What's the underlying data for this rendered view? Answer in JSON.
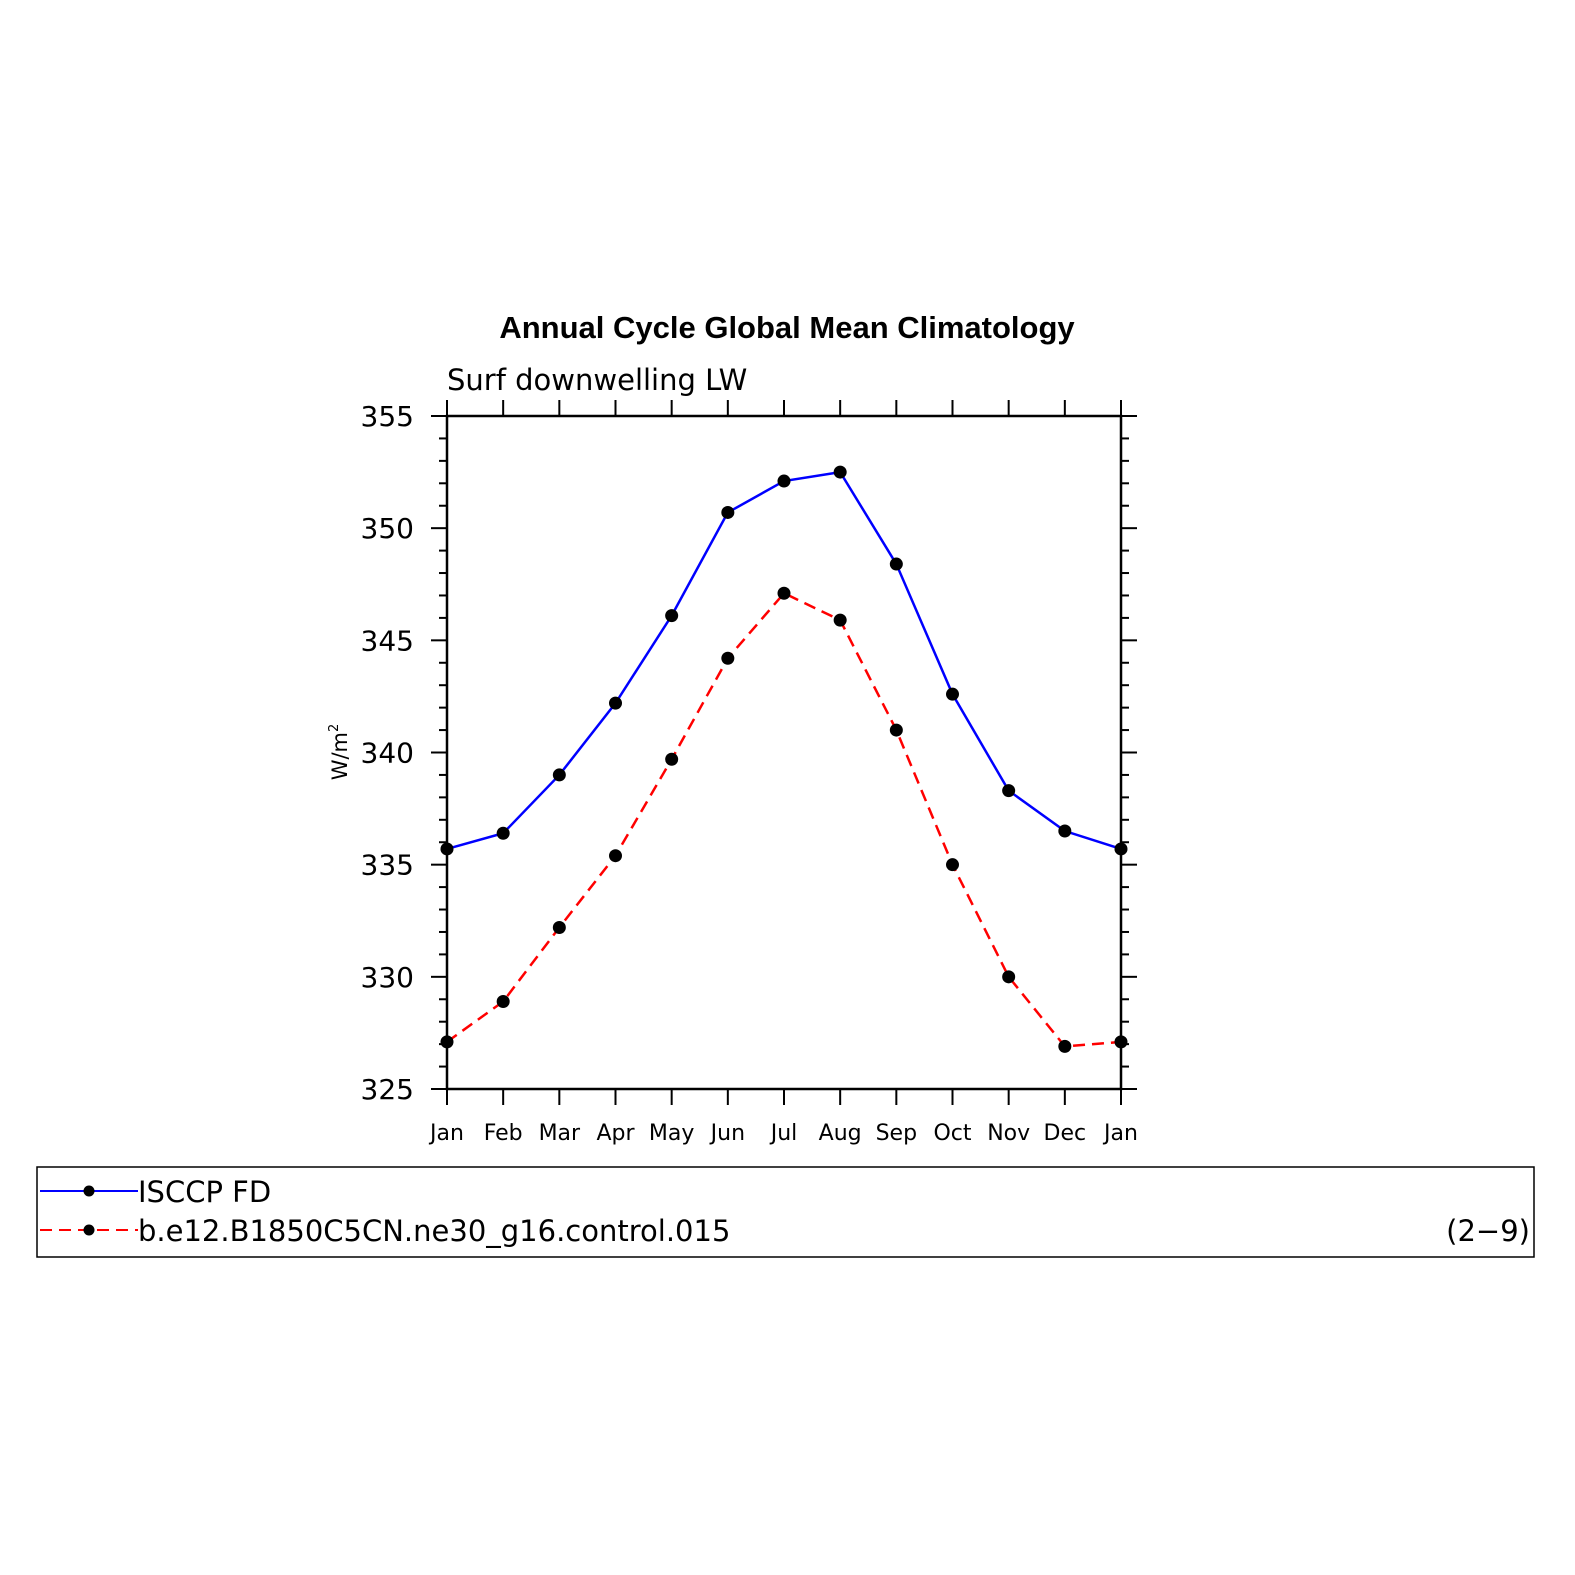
{
  "chart_data": {
    "type": "line",
    "title": "Annual Cycle Global Mean Climatology",
    "subtitle": "Surf downwelling LW",
    "ylabel": "W/m",
    "ylabel_superscript": "2",
    "ylim": [
      325,
      355
    ],
    "yticks": [
      "325",
      "330",
      "335",
      "340",
      "345",
      "350",
      "355"
    ],
    "categories": [
      "Jan",
      "Feb",
      "Mar",
      "Apr",
      "May",
      "Jun",
      "Jul",
      "Aug",
      "Sep",
      "Oct",
      "Nov",
      "Dec",
      "Jan"
    ],
    "grid": false,
    "legend_position": "bottom",
    "series": [
      {
        "name": "ISCCP FD",
        "color": "#0000ff",
        "dash": "solid",
        "values": [
          335.7,
          336.4,
          339.0,
          342.2,
          346.1,
          350.7,
          352.1,
          352.5,
          348.4,
          342.6,
          338.3,
          336.5,
          335.7
        ]
      },
      {
        "name": "b.e12.B1850C5CN.ne30_g16.control.015",
        "color": "#ff0000",
        "dash": "dashed",
        "values": [
          327.1,
          328.9,
          332.2,
          335.4,
          339.7,
          344.2,
          347.1,
          345.9,
          341.0,
          335.0,
          330.0,
          326.9,
          327.1
        ]
      }
    ],
    "panel_label": "(2−9)"
  }
}
